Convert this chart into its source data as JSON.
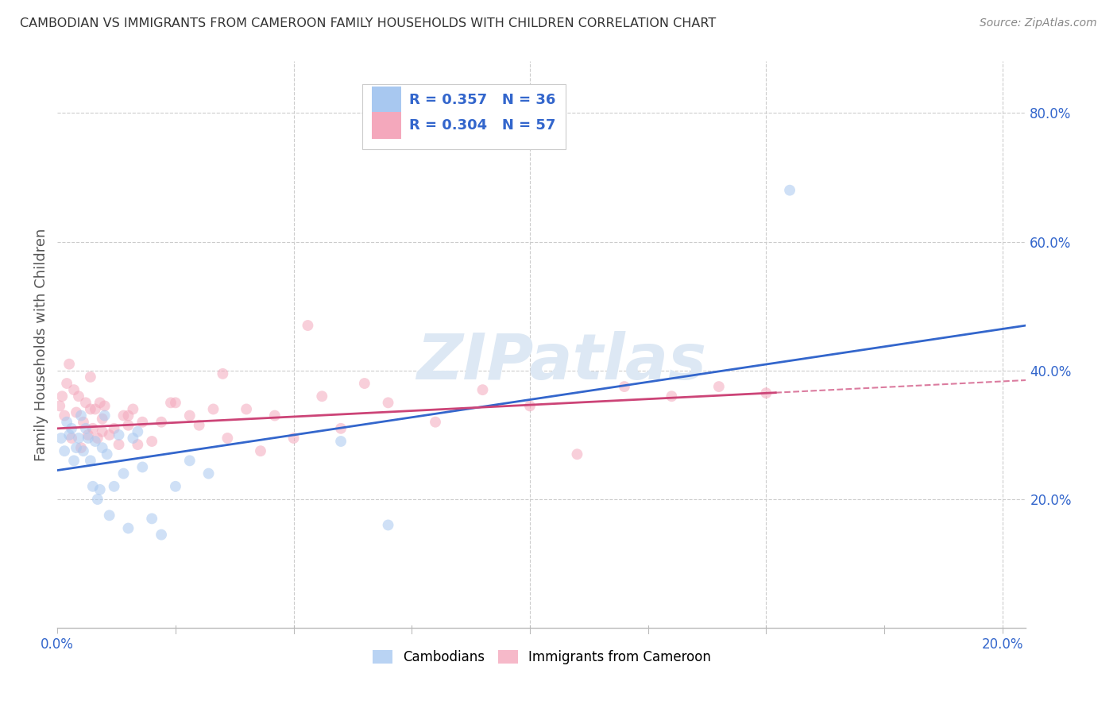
{
  "title": "CAMBODIAN VS IMMIGRANTS FROM CAMEROON FAMILY HOUSEHOLDS WITH CHILDREN CORRELATION CHART",
  "source": "Source: ZipAtlas.com",
  "ylabel": "Family Households with Children",
  "yticks": [
    0.2,
    0.4,
    0.6,
    0.8
  ],
  "ytick_labels": [
    "20.0%",
    "40.0%",
    "60.0%",
    "80.0%"
  ],
  "background_color": "#ffffff",
  "grid_color": "#cccccc",
  "cambodian_color": "#a8c8f0",
  "cameroon_color": "#f4a8bc",
  "cambodian_line_color": "#3366cc",
  "cameroon_line_color": "#cc4477",
  "watermark_text": "ZIPatlas",
  "watermark_color": "#dde8f4",
  "legend_r_cambodian": "R = 0.357",
  "legend_n_cambodian": "N = 36",
  "legend_r_cameroon": "R = 0.304",
  "legend_n_cameroon": "N = 57",
  "text_color_blue": "#3366cc",
  "text_color_pink": "#cc4477",
  "tick_label_color": "#3366cc",
  "cambodian_points": [
    [
      0.0008,
      0.295
    ],
    [
      0.0015,
      0.275
    ],
    [
      0.002,
      0.32
    ],
    [
      0.0025,
      0.3
    ],
    [
      0.003,
      0.31
    ],
    [
      0.0035,
      0.26
    ],
    [
      0.004,
      0.28
    ],
    [
      0.0045,
      0.295
    ],
    [
      0.005,
      0.33
    ],
    [
      0.0055,
      0.275
    ],
    [
      0.006,
      0.31
    ],
    [
      0.0065,
      0.295
    ],
    [
      0.007,
      0.26
    ],
    [
      0.0075,
      0.22
    ],
    [
      0.008,
      0.29
    ],
    [
      0.0085,
      0.2
    ],
    [
      0.009,
      0.215
    ],
    [
      0.0095,
      0.28
    ],
    [
      0.01,
      0.33
    ],
    [
      0.0105,
      0.27
    ],
    [
      0.011,
      0.175
    ],
    [
      0.012,
      0.22
    ],
    [
      0.013,
      0.3
    ],
    [
      0.014,
      0.24
    ],
    [
      0.015,
      0.155
    ],
    [
      0.016,
      0.295
    ],
    [
      0.017,
      0.305
    ],
    [
      0.018,
      0.25
    ],
    [
      0.02,
      0.17
    ],
    [
      0.022,
      0.145
    ],
    [
      0.025,
      0.22
    ],
    [
      0.028,
      0.26
    ],
    [
      0.032,
      0.24
    ],
    [
      0.06,
      0.29
    ],
    [
      0.07,
      0.16
    ],
    [
      0.155,
      0.68
    ]
  ],
  "cameroon_points": [
    [
      0.0005,
      0.345
    ],
    [
      0.001,
      0.36
    ],
    [
      0.0015,
      0.33
    ],
    [
      0.002,
      0.38
    ],
    [
      0.0025,
      0.41
    ],
    [
      0.003,
      0.295
    ],
    [
      0.0035,
      0.37
    ],
    [
      0.004,
      0.335
    ],
    [
      0.0045,
      0.36
    ],
    [
      0.005,
      0.28
    ],
    [
      0.0055,
      0.32
    ],
    [
      0.006,
      0.35
    ],
    [
      0.0065,
      0.3
    ],
    [
      0.007,
      0.34
    ],
    [
      0.0075,
      0.31
    ],
    [
      0.008,
      0.34
    ],
    [
      0.0085,
      0.295
    ],
    [
      0.009,
      0.35
    ],
    [
      0.0095,
      0.305
    ],
    [
      0.01,
      0.345
    ],
    [
      0.011,
      0.3
    ],
    [
      0.012,
      0.31
    ],
    [
      0.013,
      0.285
    ],
    [
      0.014,
      0.33
    ],
    [
      0.015,
      0.315
    ],
    [
      0.016,
      0.34
    ],
    [
      0.017,
      0.285
    ],
    [
      0.018,
      0.32
    ],
    [
      0.02,
      0.29
    ],
    [
      0.022,
      0.32
    ],
    [
      0.025,
      0.35
    ],
    [
      0.028,
      0.33
    ],
    [
      0.03,
      0.315
    ],
    [
      0.033,
      0.34
    ],
    [
      0.036,
      0.295
    ],
    [
      0.04,
      0.34
    ],
    [
      0.043,
      0.275
    ],
    [
      0.046,
      0.33
    ],
    [
      0.05,
      0.295
    ],
    [
      0.053,
      0.47
    ],
    [
      0.056,
      0.36
    ],
    [
      0.06,
      0.31
    ],
    [
      0.065,
      0.38
    ],
    [
      0.07,
      0.35
    ],
    [
      0.08,
      0.32
    ],
    [
      0.09,
      0.37
    ],
    [
      0.1,
      0.345
    ],
    [
      0.11,
      0.27
    ],
    [
      0.12,
      0.375
    ],
    [
      0.13,
      0.36
    ],
    [
      0.14,
      0.375
    ],
    [
      0.15,
      0.365
    ],
    [
      0.035,
      0.395
    ],
    [
      0.007,
      0.39
    ],
    [
      0.024,
      0.35
    ],
    [
      0.0095,
      0.325
    ],
    [
      0.015,
      0.33
    ]
  ],
  "xlim": [
    0.0,
    0.205
  ],
  "ylim": [
    0.0,
    0.88
  ],
  "marker_size": 100,
  "marker_alpha": 0.55,
  "blue_line_y0": 0.245,
  "blue_line_y1": 0.47,
  "pink_line_y0": 0.31,
  "pink_line_y1": 0.385
}
